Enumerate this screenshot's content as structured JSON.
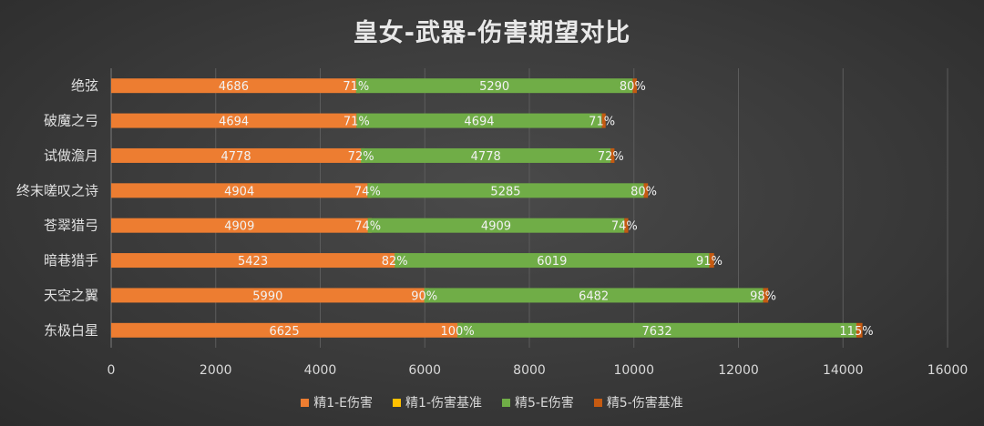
{
  "chart_data": {
    "type": "bar",
    "orientation": "horizontal",
    "stacked": true,
    "title": "皇女-武器-伤害期望对比",
    "categories": [
      "绝弦",
      "破魔之弓",
      "试做澹月",
      "终末嗟叹之诗",
      "苍翠猎弓",
      "暗巷猎手",
      "天空之翼",
      "东极白星"
    ],
    "series": [
      {
        "name": "精1-E伤害",
        "color": "#ED7D31",
        "values": [
          4686,
          4694,
          4778,
          4904,
          4909,
          5423,
          5990,
          6625
        ],
        "labels": [
          "4686",
          "4694",
          "4778",
          "4904",
          "4909",
          "5423",
          "5990",
          "6625"
        ]
      },
      {
        "name": "精1-伤害基准",
        "color": "#FFC000",
        "values": [
          71,
          71,
          72,
          74,
          74,
          82,
          90,
          100
        ],
        "labels": [
          "71%",
          "71%",
          "72%",
          "74%",
          "74%",
          "82%",
          "90%",
          "100%"
        ]
      },
      {
        "name": "精5-E伤害",
        "color": "#70AD47",
        "values": [
          5290,
          4694,
          4778,
          5285,
          4909,
          6019,
          6482,
          7632
        ],
        "labels": [
          "5290",
          "4694",
          "4778",
          "5285",
          "4909",
          "6019",
          "6482",
          "7632"
        ]
      },
      {
        "name": "精5-伤害基准",
        "color": "#C55A11",
        "values": [
          80,
          71,
          72,
          80,
          74,
          91,
          98,
          115
        ],
        "labels": [
          "80%",
          "71%",
          "72%",
          "80%",
          "74%",
          "91%",
          "98%",
          "115%"
        ]
      }
    ],
    "xlim": [
      0,
      16000
    ],
    "xticks": [
      0,
      2000,
      4000,
      6000,
      8000,
      10000,
      12000,
      14000,
      16000
    ],
    "xtick_labels": [
      "0",
      "2000",
      "4000",
      "6000",
      "8000",
      "10000",
      "12000",
      "14000",
      "16000"
    ],
    "grid": true,
    "legend_position": "bottom"
  }
}
